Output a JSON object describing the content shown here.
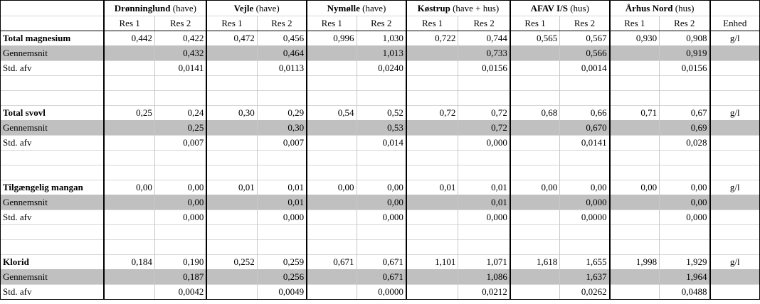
{
  "header": {
    "sites": [
      {
        "name": "Drønninglund",
        "suffix": "(have)"
      },
      {
        "name": "Vejle",
        "suffix": "(have)"
      },
      {
        "name": "Nymølle",
        "suffix": "(have)"
      },
      {
        "name": "Køstrup",
        "suffix": "(have + hus)"
      },
      {
        "name": "AFAV I/S",
        "suffix": "(hus)"
      },
      {
        "name": "Århus Nord",
        "suffix": "(hus)"
      }
    ],
    "res1": "Res 1",
    "res2": "Res 2",
    "unit_header": "Enhed"
  },
  "sections": [
    {
      "name": "Total magnesium",
      "values": [
        "0,442",
        "0,422",
        "0,472",
        "0,456",
        "0,996",
        "1,030",
        "0,722",
        "0,744",
        "0,565",
        "0,567",
        "0,930",
        "0,908"
      ],
      "unit": "g/l",
      "avg_label": "Gennemsnit",
      "avg": [
        "0,432",
        "0,464",
        "1,013",
        "0,733",
        "0,566",
        "0,919"
      ],
      "std_label": "Std. afv",
      "std": [
        "0,0141",
        "0,0113",
        "0,0240",
        "0,0156",
        "0,0014",
        "0,0156"
      ]
    },
    {
      "name": "Total svovl",
      "values": [
        "0,25",
        "0,24",
        "0,30",
        "0,29",
        "0,54",
        "0,52",
        "0,72",
        "0,72",
        "0,68",
        "0,66",
        "0,71",
        "0,67"
      ],
      "unit": "g/l",
      "avg_label": "Gennemsnit",
      "avg": [
        "0,25",
        "0,30",
        "0,53",
        "0,72",
        "0,670",
        "0,69"
      ],
      "std_label": "Std. afv",
      "std": [
        "0,007",
        "0,007",
        "0,014",
        "0,000",
        "0,0141",
        "0,028"
      ]
    },
    {
      "name": "Tilgængelig mangan",
      "values": [
        "0,00",
        "0,00",
        "0,01",
        "0,01",
        "0,00",
        "0,00",
        "0,01",
        "0,01",
        "0,00",
        "0,00",
        "0,00",
        "0,00"
      ],
      "unit": "g/l",
      "avg_label": "Gennemsnit",
      "avg": [
        "0,00",
        "0,01",
        "0,00",
        "0,01",
        "0,000",
        "0,00"
      ],
      "std_label": "Std. afv",
      "std": [
        "0,000",
        "0,000",
        "0,000",
        "0,000",
        "0,0000",
        "0,000"
      ]
    },
    {
      "name": "Klorid",
      "values": [
        "0,184",
        "0,190",
        "0,252",
        "0,259",
        "0,671",
        "0,671",
        "1,101",
        "1,071",
        "1,618",
        "1,655",
        "1,998",
        "1,929"
      ],
      "unit": "g/l",
      "avg_label": "Gennemsnit",
      "avg": [
        "0,187",
        "0,256",
        "0,671",
        "1,086",
        "1,637",
        "1,964"
      ],
      "std_label": "Std. afv",
      "std": [
        "0,0042",
        "0,0049",
        "0,0000",
        "0,0212",
        "0,0262",
        "0,0488"
      ]
    }
  ]
}
